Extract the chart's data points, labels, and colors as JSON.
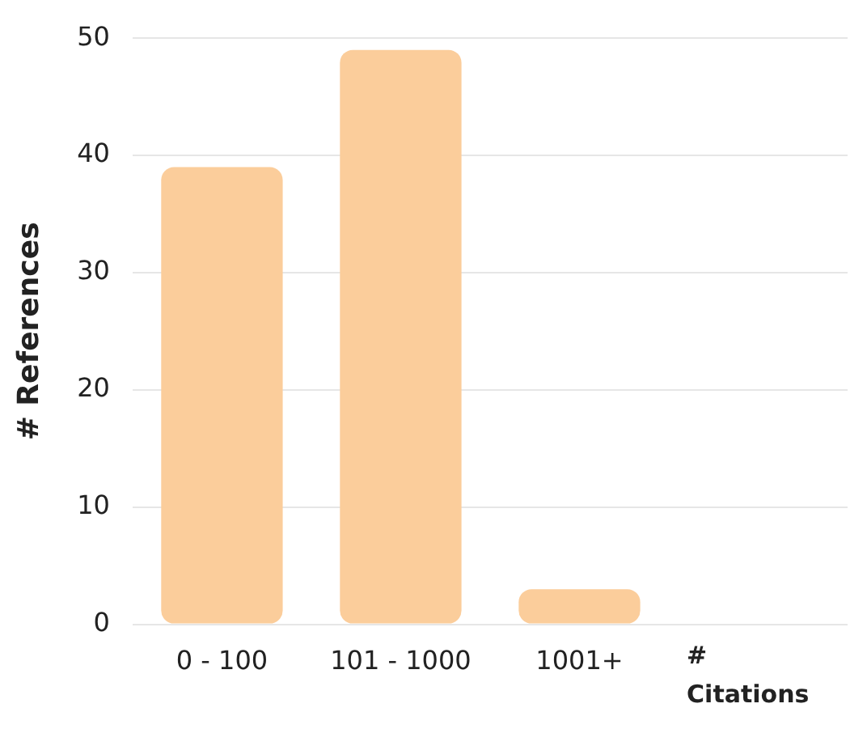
{
  "chart_data": {
    "type": "bar",
    "xlabel": "# Citations",
    "ylabel": "# References",
    "categories": [
      "0 - 100",
      "101 - 1000",
      "1001+"
    ],
    "values": [
      39,
      49,
      3
    ],
    "color": "#fbcd9b",
    "ylim": [
      0,
      50
    ],
    "yticks": [
      0,
      10,
      20,
      30,
      40,
      50
    ],
    "grid": "y",
    "legend": false
  }
}
